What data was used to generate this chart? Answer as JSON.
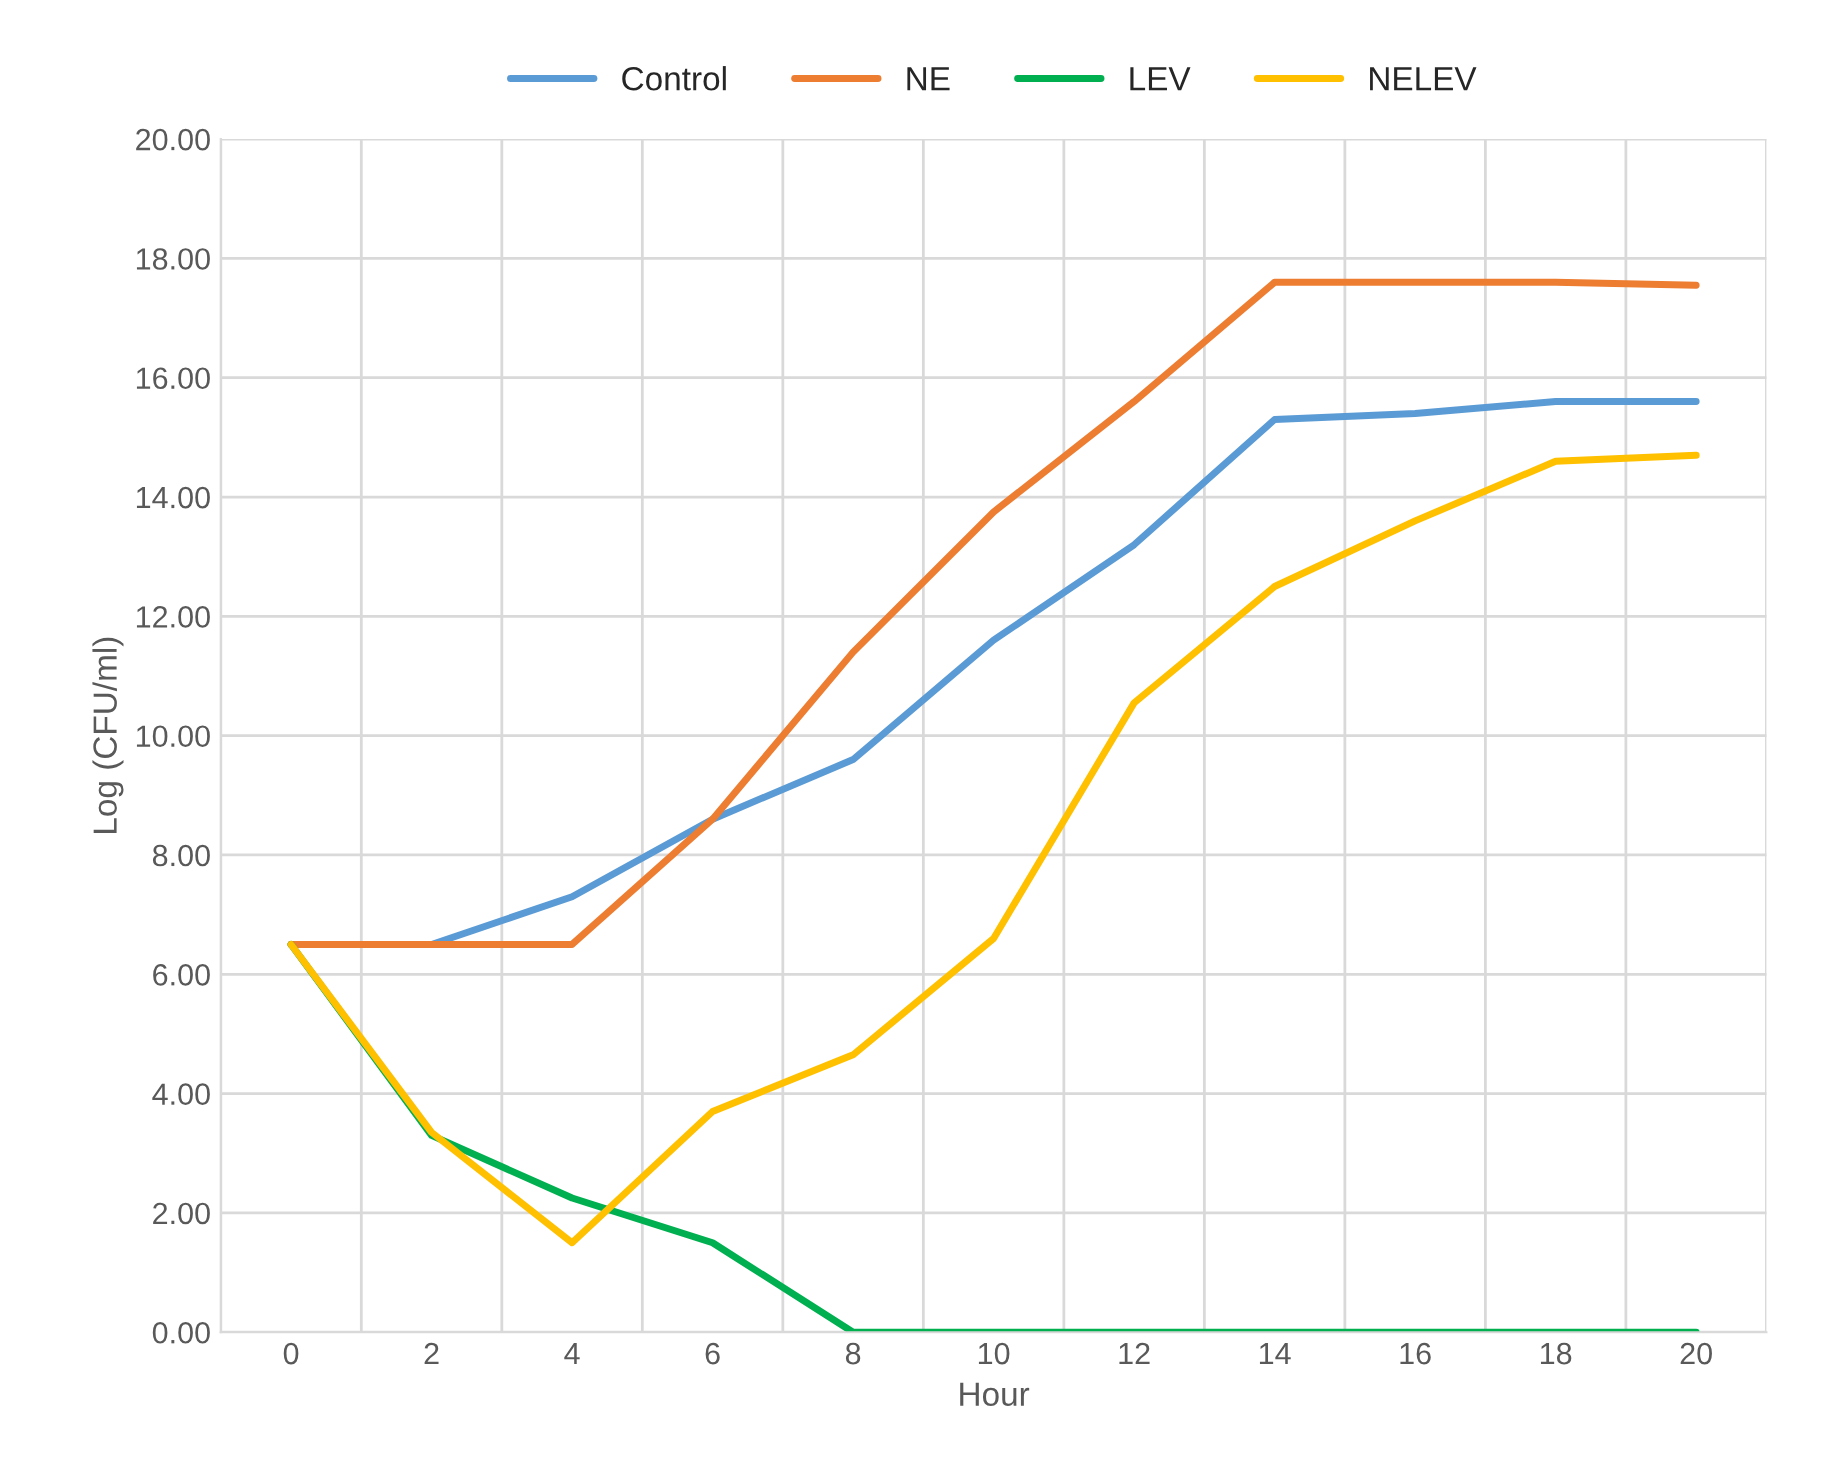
{
  "chart_data": {
    "type": "line",
    "xlabel": "Hour",
    "ylabel": "Log (CFU/ml)",
    "categories": [
      "0",
      "2",
      "4",
      "6",
      "8",
      "10",
      "12",
      "14",
      "16",
      "18",
      "20"
    ],
    "series": [
      {
        "name": "Control",
        "color": "#5b9bd5",
        "values": [
          6.5,
          6.5,
          7.3,
          8.6,
          9.6,
          11.6,
          13.2,
          15.3,
          15.4,
          15.6,
          15.6
        ]
      },
      {
        "name": "NE",
        "color": "#ed7d31",
        "values": [
          6.5,
          6.5,
          6.5,
          8.6,
          11.4,
          13.75,
          15.6,
          17.6,
          17.6,
          17.6,
          17.55
        ]
      },
      {
        "name": "LEV",
        "color": "#00b050",
        "values": [
          6.5,
          3.3,
          2.25,
          1.5,
          0,
          0,
          0,
          0,
          0,
          0,
          0
        ]
      },
      {
        "name": "NELEV",
        "color": "#ffc000",
        "values": [
          6.5,
          3.35,
          1.5,
          3.7,
          4.65,
          6.6,
          10.55,
          12.5,
          13.6,
          14.6,
          14.7
        ]
      }
    ],
    "ylim": [
      0,
      20
    ],
    "yticks": [
      {
        "value": 0,
        "label": "0.00"
      },
      {
        "value": 2,
        "label": "2.00"
      },
      {
        "value": 4,
        "label": "4.00"
      },
      {
        "value": 6,
        "label": "6.00"
      },
      {
        "value": 8,
        "label": "8.00"
      },
      {
        "value": 10,
        "label": "10.00"
      },
      {
        "value": 12,
        "label": "12.00"
      },
      {
        "value": 14,
        "label": "14.00"
      },
      {
        "value": 16,
        "label": "16.00"
      },
      {
        "value": 18,
        "label": "18.00"
      },
      {
        "value": 20,
        "label": "20.00"
      }
    ],
    "grid": true,
    "legend": "top",
    "marker": "none",
    "line_style": "solid"
  }
}
